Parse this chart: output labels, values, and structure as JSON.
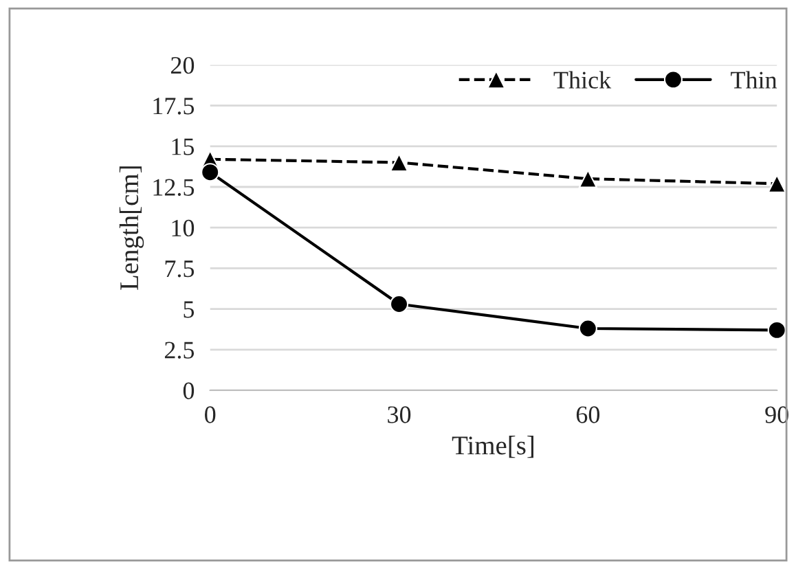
{
  "chart_data": {
    "type": "line",
    "xlabel": "Time[s]",
    "ylabel": "Length[cm]",
    "x": [
      0,
      30,
      60,
      90
    ],
    "series": [
      {
        "name": "Thick",
        "color": "#000000",
        "values": [
          14.2,
          14.0,
          13.0,
          12.7
        ],
        "marker": "triangle",
        "line_style": "dashed"
      },
      {
        "name": "Thin",
        "color": "#000000",
        "values": [
          13.4,
          5.3,
          3.8,
          3.7
        ],
        "marker": "circle",
        "line_style": "solid"
      }
    ],
    "xlim": [
      0,
      90
    ],
    "xticks": [
      0,
      30,
      60,
      90
    ],
    "ylim": [
      0,
      20
    ],
    "yticks": [
      0,
      2.5,
      5,
      7.5,
      10,
      12.5,
      15,
      17.5,
      20
    ],
    "grid": "y",
    "legend": "top right"
  }
}
